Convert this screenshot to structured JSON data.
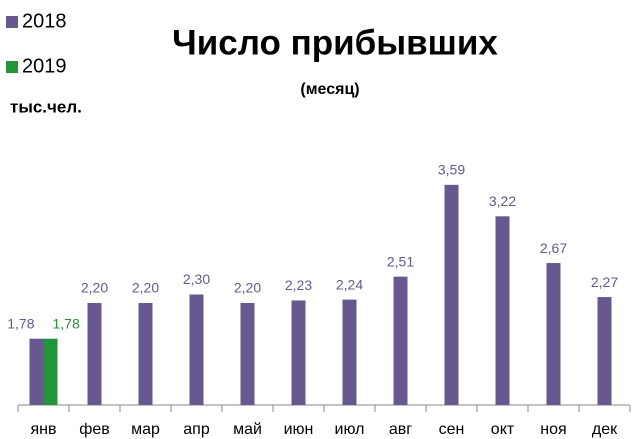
{
  "chart_data": {
    "type": "bar",
    "title": "Число прибывших",
    "subtitle": "(месяц)",
    "unit": "тыс.чел.",
    "categories": [
      "янв",
      "фев",
      "мар",
      "апр",
      "май",
      "июн",
      "июл",
      "авг",
      "сен",
      "окт",
      "ноя",
      "дек"
    ],
    "series": [
      {
        "name": "2018",
        "color": "#67598f",
        "values": [
          1.78,
          2.2,
          2.2,
          2.3,
          2.2,
          2.23,
          2.24,
          2.51,
          3.59,
          3.22,
          2.67,
          2.27
        ],
        "value_labels": [
          "1,78",
          "2,20",
          "2,20",
          "2,30",
          "2,20",
          "2,23",
          "2,24",
          "2,51",
          "3,59",
          "3,22",
          "2,67",
          "2,27"
        ]
      },
      {
        "name": "2019",
        "color": "#22943a",
        "values": [
          1.78,
          null,
          null,
          null,
          null,
          null,
          null,
          null,
          null,
          null,
          null,
          null
        ],
        "value_labels": [
          "1,78",
          null,
          null,
          null,
          null,
          null,
          null,
          null,
          null,
          null,
          null,
          null
        ]
      }
    ],
    "ylim": [
      1,
      4
    ]
  }
}
